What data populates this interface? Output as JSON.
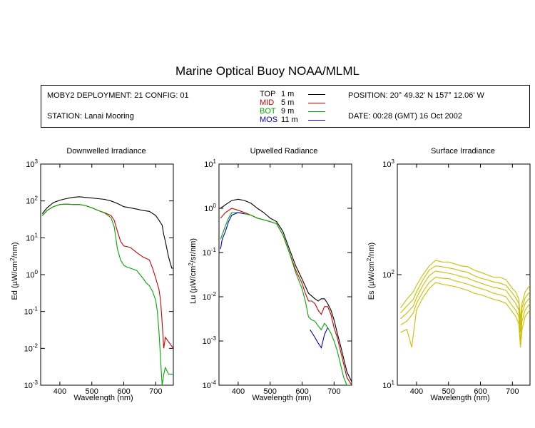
{
  "title": "Marine Optical Buoy NOAA/MLML",
  "info": {
    "deployment": "MOBY2 DEPLOYMENT: 21 CONFIG: 01",
    "station": "STATION: Lanai Mooring",
    "position": "POSITION: 20° 49.32' N   157° 12.06' W",
    "date": "DATE: 00:28 (GMT) 16 Oct 2002"
  },
  "legend": [
    {
      "name": "TOP",
      "depth": "1  m",
      "color": "#000000"
    },
    {
      "name": "MID",
      "depth": "5  m",
      "color": "#cc0000"
    },
    {
      "name": "BOT",
      "depth": "9  m",
      "color": "#00aa00"
    },
    {
      "name": "MOS",
      "depth": "11  m",
      "color": "#0000cc"
    }
  ],
  "chart_data": [
    {
      "type": "line",
      "title": "Downwelled Irradiance",
      "xlabel": "Wavelength (nm)",
      "ylabel_pre": "Ed  (µW/cm",
      "ylabel_post": "/nm)",
      "xlim": [
        340,
        755
      ],
      "xticks": [
        400,
        500,
        600,
        700
      ],
      "ylim": [
        0.001,
        1000
      ],
      "log_y": true,
      "yticks": [
        -3,
        -2,
        -1,
        0,
        1,
        2,
        3
      ],
      "series": [
        {
          "name": "TOP",
          "color": "#000000",
          "x": [
            345,
            360,
            380,
            400,
            420,
            440,
            460,
            480,
            500,
            520,
            540,
            560,
            580,
            600,
            620,
            640,
            660,
            680,
            700,
            710,
            720,
            725,
            730,
            740,
            750,
            755
          ],
          "y": [
            45,
            65,
            90,
            105,
            115,
            125,
            130,
            125,
            120,
            115,
            110,
            100,
            85,
            70,
            65,
            60,
            55,
            52,
            40,
            30,
            22,
            12,
            8,
            3,
            1.5,
            1.5
          ]
        },
        {
          "name": "MID",
          "color": "#cc0000",
          "x": [
            345,
            360,
            380,
            400,
            420,
            440,
            460,
            480,
            500,
            520,
            540,
            560,
            570,
            580,
            590,
            600,
            620,
            640,
            660,
            680,
            690,
            700,
            710,
            715,
            720,
            725,
            730,
            740,
            755
          ],
          "y": [
            40,
            55,
            70,
            80,
            82,
            80,
            80,
            75,
            65,
            55,
            48,
            40,
            30,
            15,
            8,
            6,
            5.5,
            4,
            3,
            2.5,
            1.5,
            0.8,
            0.4,
            0.2,
            0.05,
            0.01,
            0.02,
            0.015,
            0.01
          ]
        },
        {
          "name": "BOT",
          "color": "#00aa00",
          "x": [
            345,
            360,
            380,
            400,
            420,
            440,
            460,
            480,
            500,
            520,
            540,
            560,
            570,
            580,
            590,
            600,
            610,
            620,
            640,
            660,
            670,
            680,
            690,
            700,
            705,
            710,
            715,
            720,
            725,
            730,
            740,
            755
          ],
          "y": [
            40,
            55,
            70,
            80,
            82,
            80,
            80,
            75,
            65,
            55,
            47,
            35,
            20,
            5,
            2.5,
            1.8,
            1.6,
            1.5,
            1.3,
            0.8,
            0.6,
            0.5,
            0.35,
            0.2,
            0.1,
            0.03,
            0.005,
            0.001,
            0.002,
            0.003,
            0.002,
            0.002
          ]
        }
      ]
    },
    {
      "type": "line",
      "title": "Upwelled Radiance",
      "xlabel": "Wavelength (nm)",
      "ylabel_pre": "Lu  (µW/cm",
      "ylabel_post": "/sr/nm)",
      "xlim": [
        340,
        755
      ],
      "xticks": [
        400,
        500,
        600,
        700
      ],
      "ylim": [
        0.0001,
        10
      ],
      "log_y": true,
      "yticks": [
        -4,
        -3,
        -2,
        -1,
        0,
        1
      ],
      "series": [
        {
          "name": "TOP",
          "color": "#000000",
          "x": [
            345,
            360,
            380,
            400,
            420,
            440,
            460,
            480,
            500,
            520,
            540,
            560,
            580,
            600,
            620,
            640,
            650,
            660,
            670,
            680,
            690,
            700,
            710,
            720,
            730,
            740,
            755
          ],
          "y": [
            1.0,
            1.2,
            1.5,
            1.6,
            1.5,
            1.3,
            1.0,
            0.8,
            0.6,
            0.5,
            0.3,
            0.12,
            0.05,
            0.025,
            0.012,
            0.009,
            0.008,
            0.009,
            0.009,
            0.007,
            0.005,
            0.003,
            0.0015,
            0.0008,
            0.0004,
            0.0002,
            0.00012
          ]
        },
        {
          "name": "MID",
          "color": "#cc0000",
          "x": [
            345,
            360,
            380,
            400,
            420,
            440,
            460,
            480,
            500,
            520,
            540,
            560,
            580,
            600,
            610,
            620,
            630,
            640,
            650,
            660,
            670,
            680,
            690,
            700,
            710,
            720,
            730,
            740,
            755
          ],
          "y": [
            0.6,
            0.8,
            1.0,
            0.9,
            0.8,
            0.7,
            0.6,
            0.55,
            0.5,
            0.45,
            0.25,
            0.1,
            0.04,
            0.02,
            0.012,
            0.008,
            0.008,
            0.007,
            0.005,
            0.004,
            0.006,
            0.006,
            0.004,
            0.002,
            0.0012,
            0.0006,
            0.0003,
            0.00015,
            0.0001
          ]
        },
        {
          "name": "BOT",
          "color": "#00aa00",
          "x": [
            345,
            360,
            370,
            380,
            400,
            420,
            440,
            460,
            480,
            500,
            520,
            540,
            560,
            580,
            600,
            610,
            620,
            630,
            640,
            650,
            660,
            670,
            680,
            690,
            700,
            710,
            720,
            730,
            740,
            755
          ],
          "y": [
            0.2,
            0.4,
            0.6,
            0.8,
            0.8,
            0.75,
            0.7,
            0.6,
            0.55,
            0.5,
            0.45,
            0.25,
            0.1,
            0.035,
            0.015,
            0.008,
            0.0035,
            0.003,
            0.0028,
            0.0022,
            0.0018,
            0.0025,
            0.002,
            0.0015,
            0.001,
            0.0006,
            0.0003,
            0.00015,
            0.0001,
            0.0001
          ]
        },
        {
          "name": "MOS",
          "color": "#0000cc",
          "x": [
            345,
            350,
            360,
            370,
            380,
            400,
            420
          ],
          "y": [
            0.12,
            0.2,
            0.3,
            0.5,
            0.7,
            0.8,
            0.75
          ]
        },
        {
          "name": "MOS",
          "color": "#0000cc",
          "x": [
            625,
            640,
            650,
            655,
            660,
            670,
            680
          ],
          "y": [
            0.0018,
            0.0012,
            0.0009,
            0.0008,
            0.0007,
            0.0014,
            0.002
          ]
        }
      ]
    },
    {
      "type": "line",
      "title": "Surface Irradiance",
      "xlabel": "Wavelength (nm)",
      "ylabel_pre": "Es  (µW/cm",
      "ylabel_post": "/nm)",
      "xlim": [
        340,
        755
      ],
      "xticks": [
        400,
        500,
        600,
        700
      ],
      "ylim": [
        10,
        1000
      ],
      "log_y": true,
      "yticks": [
        1,
        2,
        3
      ],
      "series": [
        {
          "name": "Es",
          "color": "#c8c000",
          "x": [
            350,
            370,
            390,
            400,
            420,
            440,
            460,
            480,
            500,
            520,
            540,
            560,
            580,
            600,
            620,
            640,
            660,
            680,
            700,
            710,
            720,
            725,
            730,
            740,
            755
          ],
          "y": [
            50,
            60,
            70,
            80,
            100,
            120,
            135,
            130,
            130,
            125,
            120,
            118,
            110,
            105,
            100,
            95,
            95,
            90,
            75,
            70,
            60,
            40,
            55,
            70,
            80
          ]
        },
        {
          "name": "Es",
          "color": "#c8c000",
          "x": [
            350,
            370,
            390,
            400,
            420,
            440,
            460,
            480,
            500,
            520,
            540,
            560,
            580,
            600,
            620,
            640,
            660,
            680,
            700,
            710,
            720,
            725,
            730,
            740,
            755
          ],
          "y": [
            45,
            52,
            60,
            70,
            90,
            110,
            120,
            118,
            115,
            112,
            108,
            105,
            98,
            93,
            90,
            86,
            84,
            80,
            68,
            62,
            55,
            35,
            50,
            62,
            70
          ]
        },
        {
          "name": "Es",
          "color": "#c8c000",
          "x": [
            350,
            370,
            390,
            400,
            420,
            440,
            460,
            480,
            500,
            520,
            540,
            560,
            580,
            600,
            620,
            640,
            660,
            680,
            700,
            710,
            720,
            725,
            730,
            740,
            755
          ],
          "y": [
            40,
            45,
            52,
            62,
            80,
            98,
            108,
            105,
            103,
            100,
            96,
            93,
            88,
            84,
            80,
            77,
            75,
            72,
            60,
            55,
            48,
            30,
            45,
            55,
            62
          ]
        },
        {
          "name": "Es",
          "color": "#c8c000",
          "x": [
            350,
            370,
            390,
            400,
            420,
            440,
            460,
            480,
            500,
            520,
            540,
            560,
            580,
            600,
            620,
            640,
            660,
            680,
            700,
            710,
            720,
            725,
            730,
            740,
            755
          ],
          "y": [
            35,
            38,
            45,
            55,
            70,
            85,
            95,
            93,
            92,
            88,
            85,
            82,
            78,
            75,
            72,
            68,
            66,
            63,
            52,
            48,
            42,
            25,
            38,
            48,
            55
          ]
        },
        {
          "name": "Es",
          "color": "#c8c000",
          "x": [
            350,
            370,
            385,
            400,
            420,
            440,
            460,
            480,
            500,
            520,
            540,
            560,
            580,
            600,
            620,
            640,
            660,
            680,
            700,
            710,
            720,
            725,
            730,
            740,
            755
          ],
          "y": [
            30,
            32,
            22,
            48,
            62,
            75,
            85,
            82,
            80,
            78,
            75,
            72,
            68,
            66,
            63,
            60,
            58,
            55,
            46,
            42,
            36,
            22,
            32,
            42,
            48
          ]
        }
      ]
    }
  ]
}
